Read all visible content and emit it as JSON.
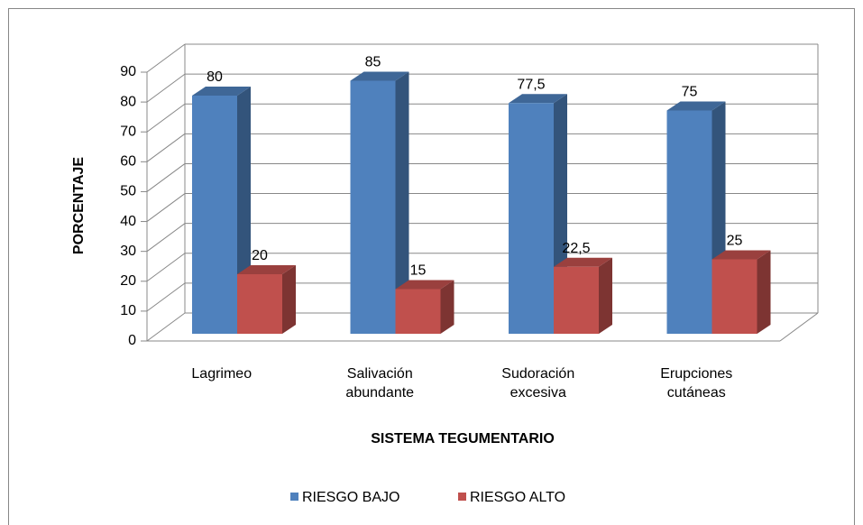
{
  "chart_data": {
    "type": "bar3d",
    "categories": [
      "Lagrimeo",
      "Salivación abundante",
      "Sudoración excesiva",
      "Erupciones cutáneas"
    ],
    "series": [
      {
        "name": "RIESGO BAJO",
        "color": "#4f81bd",
        "values": [
          80,
          85,
          77.5,
          75
        ],
        "value_labels": [
          "80",
          "85",
          "77,5",
          "75"
        ]
      },
      {
        "name": "RIESGO ALTO",
        "color": "#c0504d",
        "values": [
          20,
          15,
          22.5,
          25
        ],
        "value_labels": [
          "20",
          "15",
          "22,5",
          "25"
        ]
      }
    ],
    "ylabel": "PORCENTAJE",
    "xlabel": "SISTEMA TEGUMENTARIO",
    "ylim": [
      0,
      90
    ],
    "yticks": [
      0,
      10,
      20,
      30,
      40,
      50,
      60,
      70,
      80,
      90
    ],
    "grid": true,
    "legend": "bottom"
  }
}
